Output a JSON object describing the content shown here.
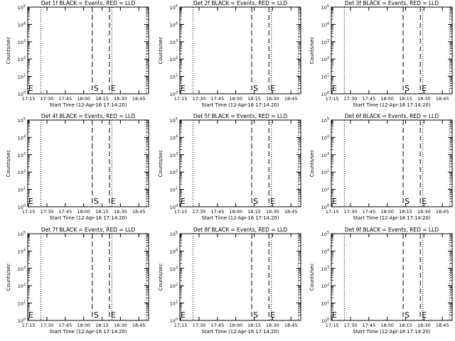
{
  "chart_data": [
    {
      "type": "line",
      "title": "Det 1f BLACK = Events, RED = LLD",
      "xlabel": "Start Time (12-Apr-16 17:14:20)",
      "ylabel": "Counts/sec",
      "x_ticks": [
        "17:15",
        "17:30",
        "17:45",
        "18:00",
        "18:15",
        "18:30",
        "18:45"
      ],
      "x_range": [
        "17:14:20",
        "18:53"
      ],
      "y_scale": "log",
      "y_ticks": [
        "10^0",
        "10^1",
        "10^2",
        "10^3",
        "10^4",
        "10^5"
      ],
      "ylim": [
        1,
        100000
      ],
      "markers": [
        {
          "label": "E",
          "time": "17:14:20",
          "style": "solid"
        },
        {
          "label": "S",
          "time": "18:07",
          "style": "dashed"
        },
        {
          "label": "E",
          "time": "18:21",
          "style": "dashed"
        }
      ],
      "dotted_lines": [
        "17:25",
        "18:23",
        "18:51"
      ],
      "series": []
    },
    {
      "type": "line",
      "title": "Det 2f BLACK = Events, RED = LLD",
      "xlabel": "Start Time (12-Apr-16 17:14:20)",
      "ylabel": "Counts/sec",
      "x_ticks": [
        "17:15",
        "17:30",
        "17:45",
        "18:00",
        "18:15",
        "18:30",
        "18:45"
      ],
      "x_range": [
        "17:14:20",
        "18:53"
      ],
      "y_scale": "log",
      "y_ticks": [
        "10^0",
        "10^1",
        "10^2",
        "10^3",
        "10^4",
        "10^5"
      ],
      "ylim": [
        1,
        100000
      ],
      "markers": [
        {
          "label": "E",
          "time": "17:14:20",
          "style": "solid"
        },
        {
          "label": "S",
          "time": "18:13",
          "style": "dashed"
        },
        {
          "label": "E",
          "time": "18:27",
          "style": "dashed"
        }
      ],
      "dotted_lines": [
        "17:25",
        "18:29",
        "18:51"
      ],
      "series": []
    },
    {
      "type": "line",
      "title": "Det 3f BLACK = Events, RED = LLD",
      "xlabel": "Start Time (12-Apr-16 17:14:20)",
      "ylabel": "Counts/sec",
      "x_ticks": [
        "17:15",
        "17:30",
        "17:45",
        "18:00",
        "18:15",
        "18:30",
        "18:45"
      ],
      "x_range": [
        "17:14:20",
        "18:53"
      ],
      "y_scale": "log",
      "y_ticks": [
        "10^0",
        "10^1",
        "10^2",
        "10^3",
        "10^4",
        "10^5"
      ],
      "ylim": [
        1,
        100000
      ],
      "markers": [
        {
          "label": "E",
          "time": "17:14:20",
          "style": "solid"
        },
        {
          "label": "S",
          "time": "18:13",
          "style": "dashed"
        },
        {
          "label": "E",
          "time": "18:27",
          "style": "dashed"
        }
      ],
      "dotted_lines": [
        "17:25",
        "18:29",
        "18:51"
      ],
      "series": []
    },
    {
      "type": "line",
      "title": "Det 4f BLACK = Events, RED = LLD",
      "xlabel": "Start Time (12-Apr-16 17:14:20)",
      "ylabel": "Counts/sec",
      "x_ticks": [
        "17:15",
        "17:30",
        "17:45",
        "18:00",
        "18:15",
        "18:30",
        "18:45"
      ],
      "x_range": [
        "17:14:20",
        "18:53"
      ],
      "y_scale": "log",
      "y_ticks": [
        "10^0",
        "10^1",
        "10^2",
        "10^3",
        "10^4",
        "10^5"
      ],
      "ylim": [
        1,
        100000
      ],
      "markers": [
        {
          "label": "E",
          "time": "17:14:20",
          "style": "solid"
        },
        {
          "label": "S",
          "time": "18:07",
          "style": "dashed"
        },
        {
          "label": "E",
          "time": "18:21",
          "style": "dashed"
        }
      ],
      "dotted_lines": [
        "17:25",
        "18:23",
        "18:51"
      ],
      "series": []
    },
    {
      "type": "line",
      "title": "Det 5f BLACK = Events, RED = LLD",
      "xlabel": "Start Time (12-Apr-16 17:14:20)",
      "ylabel": "Counts/sec",
      "x_ticks": [
        "17:15",
        "17:30",
        "17:45",
        "18:00",
        "18:15",
        "18:30",
        "18:45"
      ],
      "x_range": [
        "17:14:20",
        "18:53"
      ],
      "y_scale": "log",
      "y_ticks": [
        "10^0",
        "10^1",
        "10^2",
        "10^3",
        "10^4",
        "10^5"
      ],
      "ylim": [
        1,
        100000
      ],
      "markers": [
        {
          "label": "E",
          "time": "17:14:20",
          "style": "solid"
        },
        {
          "label": "S",
          "time": "18:13",
          "style": "dashed"
        },
        {
          "label": "E",
          "time": "18:27",
          "style": "dashed"
        }
      ],
      "dotted_lines": [
        "17:25",
        "18:29",
        "18:51"
      ],
      "series": []
    },
    {
      "type": "line",
      "title": "Det 6f BLACK = Events, RED = LLD",
      "xlabel": "Start Time (12-Apr-16 17:14:20)",
      "ylabel": "Counts/sec",
      "x_ticks": [
        "17:15",
        "17:30",
        "17:45",
        "18:00",
        "18:15",
        "18:30",
        "18:45"
      ],
      "x_range": [
        "17:14:20",
        "18:53"
      ],
      "y_scale": "log",
      "y_ticks": [
        "10^0",
        "10^1",
        "10^2",
        "10^3",
        "10^4",
        "10^5"
      ],
      "ylim": [
        1,
        100000
      ],
      "markers": [
        {
          "label": "E",
          "time": "17:14:20",
          "style": "solid"
        },
        {
          "label": "S",
          "time": "18:13",
          "style": "dashed"
        },
        {
          "label": "E",
          "time": "18:27",
          "style": "dashed"
        }
      ],
      "dotted_lines": [
        "17:25",
        "18:29",
        "18:51"
      ],
      "series": []
    },
    {
      "type": "line",
      "title": "Det 7f BLACK = Events, RED = LLD",
      "xlabel": "Start Time (12-Apr-16 17:14:20)",
      "ylabel": "Counts/sec",
      "x_ticks": [
        "17:15",
        "17:30",
        "17:45",
        "18:00",
        "18:15",
        "18:30",
        "18:45"
      ],
      "x_range": [
        "17:14:20",
        "18:53"
      ],
      "y_scale": "log",
      "y_ticks": [
        "10^0",
        "10^1",
        "10^2",
        "10^3",
        "10^4",
        "10^5"
      ],
      "ylim": [
        1,
        100000
      ],
      "markers": [
        {
          "label": "E",
          "time": "17:14:20",
          "style": "solid"
        },
        {
          "label": "S",
          "time": "18:07",
          "style": "dashed"
        },
        {
          "label": "E",
          "time": "18:21",
          "style": "dashed"
        }
      ],
      "dotted_lines": [
        "17:25",
        "18:23",
        "18:51"
      ],
      "series": []
    },
    {
      "type": "line",
      "title": "Det 8f BLACK = Events, RED = LLD",
      "xlabel": "Start Time (12-Apr-16 17:14:20)",
      "ylabel": "Counts/sec",
      "x_ticks": [
        "17:15",
        "17:30",
        "17:45",
        "18:00",
        "18:15",
        "18:30",
        "18:45"
      ],
      "x_range": [
        "17:14:20",
        "18:53"
      ],
      "y_scale": "log",
      "y_ticks": [
        "10^0",
        "10^1",
        "10^2",
        "10^3",
        "10^4",
        "10^5"
      ],
      "ylim": [
        1,
        100000
      ],
      "markers": [
        {
          "label": "E",
          "time": "17:14:20",
          "style": "solid"
        },
        {
          "label": "S",
          "time": "18:13",
          "style": "dashed"
        },
        {
          "label": "E",
          "time": "18:27",
          "style": "dashed"
        }
      ],
      "dotted_lines": [
        "17:25",
        "18:29",
        "18:51"
      ],
      "series": []
    },
    {
      "type": "line",
      "title": "Det 9f BLACK = Events, RED = LLD",
      "xlabel": "Start Time (12-Apr-16 17:14:20)",
      "ylabel": "Counts/sec",
      "x_ticks": [
        "17:15",
        "17:30",
        "17:45",
        "18:00",
        "18:15",
        "18:30",
        "18:45"
      ],
      "x_range": [
        "17:14:20",
        "18:53"
      ],
      "y_scale": "log",
      "y_ticks": [
        "10^0",
        "10^1",
        "10^2",
        "10^3",
        "10^4",
        "10^5"
      ],
      "ylim": [
        1,
        100000
      ],
      "markers": [
        {
          "label": "E",
          "time": "17:14:20",
          "style": "solid"
        },
        {
          "label": "S",
          "time": "18:13",
          "style": "dashed"
        },
        {
          "label": "E",
          "time": "18:27",
          "style": "dashed"
        }
      ],
      "dotted_lines": [
        "17:25",
        "18:29",
        "18:51"
      ],
      "series": []
    }
  ]
}
